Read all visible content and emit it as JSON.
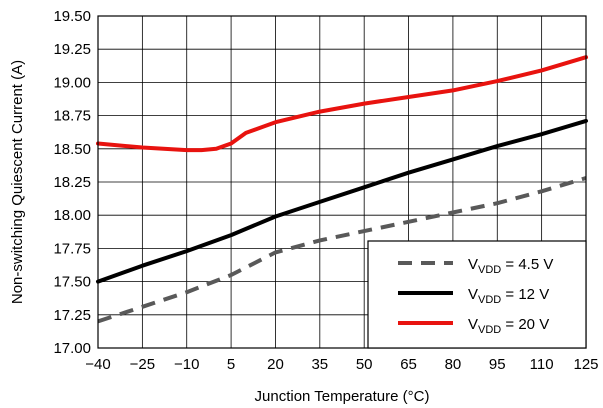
{
  "chart_data": {
    "type": "line",
    "xlabel": "Junction Temperature (°C)",
    "ylabel": "Non-switching Quiescent Current (A)",
    "xlim": [
      -40,
      125
    ],
    "ylim": [
      17.0,
      19.5
    ],
    "x_ticks": [
      "−40",
      "−25",
      "−10",
      "5",
      "20",
      "35",
      "50",
      "65",
      "80",
      "95",
      "110",
      "125"
    ],
    "x_tick_values": [
      -40,
      -25,
      -10,
      5,
      20,
      35,
      50,
      65,
      80,
      95,
      110,
      125
    ],
    "y_ticks": [
      "17.00",
      "17.25",
      "17.50",
      "17.75",
      "18.00",
      "18.25",
      "18.50",
      "18.75",
      "19.00",
      "19.25",
      "19.50"
    ],
    "y_tick_values": [
      17.0,
      17.25,
      17.5,
      17.75,
      18.0,
      18.25,
      18.5,
      18.75,
      19.0,
      19.25,
      19.5
    ],
    "grid": true,
    "legend_position": "bottom-right",
    "series": [
      {
        "legend_main": "V",
        "legend_sub": "VDD",
        "legend_tail": " = 4.5 V",
        "color": "#595959",
        "dash": true,
        "x": [
          -40,
          -25,
          -10,
          5,
          20,
          35,
          50,
          65,
          80,
          95,
          110,
          125
        ],
        "y": [
          17.2,
          17.31,
          17.42,
          17.55,
          17.72,
          17.81,
          17.88,
          17.95,
          18.02,
          18.09,
          18.18,
          18.28
        ]
      },
      {
        "legend_main": "V",
        "legend_sub": "VDD",
        "legend_tail": " = 12 V",
        "color": "#000000",
        "dash": false,
        "x": [
          -40,
          -25,
          -10,
          5,
          20,
          35,
          50,
          65,
          80,
          95,
          110,
          125
        ],
        "y": [
          17.5,
          17.62,
          17.73,
          17.85,
          17.99,
          18.1,
          18.21,
          18.32,
          18.42,
          18.52,
          18.61,
          18.71
        ]
      },
      {
        "legend_main": "V",
        "legend_sub": "VDD",
        "legend_tail": " = 20 V",
        "color": "#e8130f",
        "dash": false,
        "x": [
          -40,
          -25,
          -10,
          -5,
          0,
          5,
          10,
          20,
          35,
          50,
          65,
          80,
          95,
          110,
          125
        ],
        "y": [
          18.54,
          18.51,
          18.49,
          18.49,
          18.5,
          18.54,
          18.62,
          18.7,
          18.78,
          18.84,
          18.89,
          18.94,
          19.01,
          19.09,
          19.19
        ]
      }
    ]
  }
}
